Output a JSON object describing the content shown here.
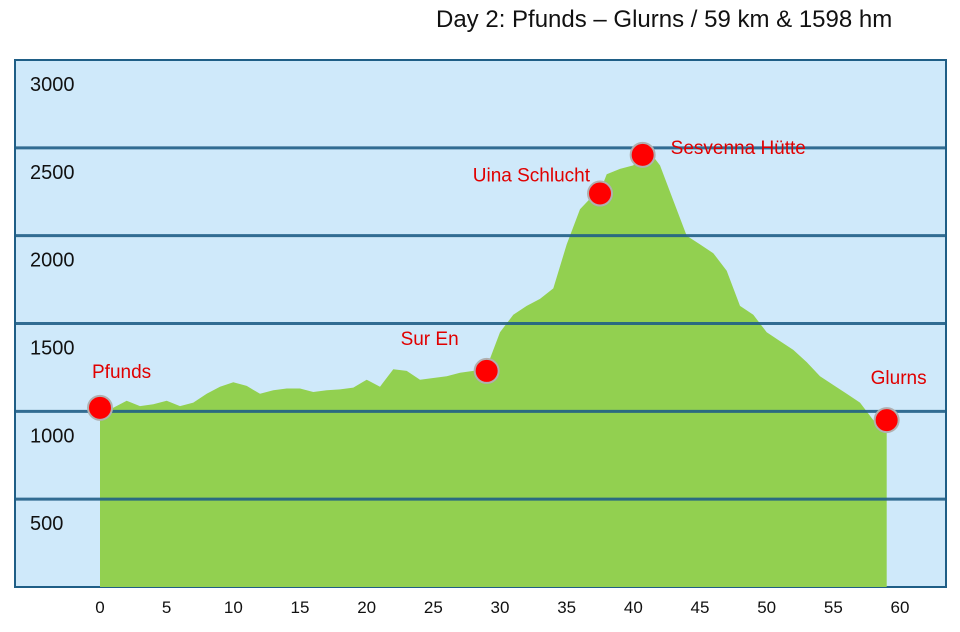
{
  "chart_data": {
    "type": "area",
    "title": "Day 2: Pfunds – Glurns / 59 km & 1598 hm",
    "xlabel": "",
    "ylabel": "",
    "xlim": [
      0,
      60
    ],
    "ylim": [
      0,
      3000
    ],
    "x_ticks": [
      "0",
      "5",
      "10",
      "15",
      "20",
      "25",
      "30",
      "35",
      "40",
      "45",
      "50",
      "55",
      "60"
    ],
    "y_ticks": [
      "500",
      "1000",
      "1500",
      "2000",
      "2500",
      "3000"
    ],
    "grid": true,
    "colors": {
      "fill": "#92d050",
      "band": "#cfe9fa",
      "grid": "#1f5e86",
      "marker": "#ff0000",
      "label": "#e00000"
    },
    "series": [
      {
        "x": [
          0,
          1,
          2,
          3,
          4,
          5,
          6,
          7,
          8,
          9,
          10,
          11,
          12,
          13,
          14,
          15,
          16,
          17,
          18,
          19,
          20,
          21,
          22,
          23,
          24,
          25,
          26,
          27,
          28,
          29,
          30,
          31,
          32,
          33,
          34,
          35,
          36,
          37,
          37.5,
          38,
          39,
          40,
          40.7,
          41.5,
          42,
          43,
          44,
          45,
          46,
          47,
          48,
          49,
          50,
          51,
          52,
          53,
          54,
          55,
          56,
          57,
          58,
          59
        ],
        "values": [
          1000,
          1020,
          1060,
          1030,
          1040,
          1060,
          1030,
          1050,
          1100,
          1140,
          1165,
          1145,
          1100,
          1120,
          1130,
          1130,
          1110,
          1120,
          1125,
          1135,
          1180,
          1140,
          1240,
          1230,
          1180,
          1190,
          1200,
          1220,
          1230,
          1250,
          1450,
          1550,
          1600,
          1640,
          1700,
          1950,
          2150,
          2230,
          2250,
          2350,
          2380,
          2400,
          2500,
          2450,
          2400,
          2200,
          2000,
          1950,
          1900,
          1800,
          1600,
          1550,
          1450,
          1400,
          1350,
          1280,
          1200,
          1150,
          1100,
          1050,
          950,
          900
        ]
      }
    ],
    "annotations": [
      {
        "label": "Pfunds",
        "x": 0,
        "y": 1020
      },
      {
        "label": "Sur En",
        "x": 29,
        "y": 1230
      },
      {
        "label": "Uina Schlucht",
        "x": 37.5,
        "y": 2240
      },
      {
        "label": "Sesvenna Hütte",
        "x": 40.7,
        "y": 2460
      },
      {
        "label": "Glurns",
        "x": 59,
        "y": 950
      }
    ]
  }
}
